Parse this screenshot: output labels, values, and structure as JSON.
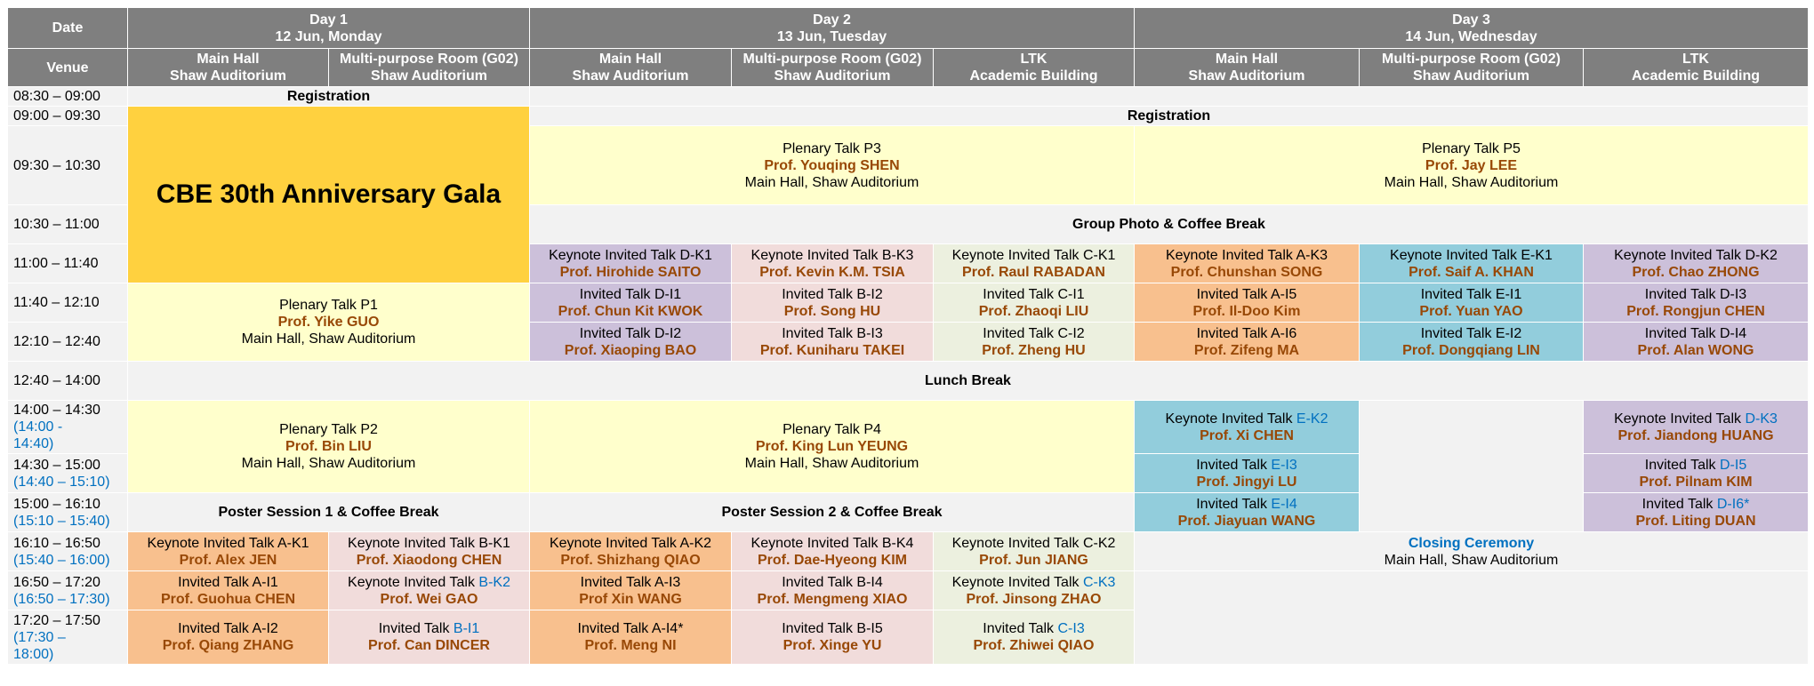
{
  "header": {
    "date_label": "Date",
    "venue_label": "Venue",
    "day1": {
      "title": "Day 1",
      "date": "12 Jun, Monday"
    },
    "day2": {
      "title": "Day 2",
      "date": "13 Jun, Tuesday"
    },
    "day3": {
      "title": "Day 3",
      "date": "14 Jun, Wednesday"
    },
    "venues": [
      {
        "line1": "Main Hall",
        "line2": "Shaw Auditorium"
      },
      {
        "line1": "Multi-purpose Room (G02)",
        "line2": "Shaw Auditorium"
      },
      {
        "line1": "Main Hall",
        "line2": "Shaw Auditorium"
      },
      {
        "line1": "Multi-purpose Room (G02)",
        "line2": "Shaw Auditorium"
      },
      {
        "line1": "LTK",
        "line2": "Academic Building"
      },
      {
        "line1": "Main Hall",
        "line2": "Shaw Auditorium"
      },
      {
        "line1": "Multi-purpose Room (G02)",
        "line2": "Shaw Auditorium"
      },
      {
        "line1": "LTK",
        "line2": "Academic Building"
      }
    ]
  },
  "times": [
    {
      "main": "08:30 – 09:00",
      "alt": ""
    },
    {
      "main": "09:00 – 09:30",
      "alt": ""
    },
    {
      "main": "09:30 – 10:30",
      "alt": ""
    },
    {
      "main": "10:30 – 11:00",
      "alt": ""
    },
    {
      "main": "11:00 – 11:40",
      "alt": ""
    },
    {
      "main": "11:40 – 12:10",
      "alt": ""
    },
    {
      "main": "12:10 – 12:40",
      "alt": ""
    },
    {
      "main": "12:40 – 14:00",
      "alt": ""
    },
    {
      "main": "14:00 – 14:30",
      "alt": "(14:00 -",
      "alt2": "14:40)"
    },
    {
      "main": "14:30 – 15:00",
      "alt": "(14:40 – 15:10)"
    },
    {
      "main": "15:00 – 16:10",
      "alt": "(15:10 – 15:40)"
    },
    {
      "main": "16:10 – 16:50",
      "alt": "(15:40 – 16:00)"
    },
    {
      "main": "16:50 – 17:20",
      "alt": "(16:50 – 17:30)"
    },
    {
      "main": "17:20 – 17:50",
      "alt": "(17:30 –",
      "alt2": "18:00)"
    }
  ],
  "breaks": {
    "registration": "Registration",
    "group_photo": "Group Photo & Coffee Break",
    "lunch": "Lunch Break",
    "poster1": "Poster Session 1 & Coffee Break",
    "poster2": "Poster Session 2 & Coffee Break",
    "gala": "CBE 30th Anniversary Gala"
  },
  "plenary": {
    "p1": {
      "title": "Plenary Talk P1",
      "speaker": "Prof. Yike GUO",
      "venue": "Main Hall, Shaw Auditorium"
    },
    "p2": {
      "title": "Plenary Talk P2",
      "speaker": "Prof. Bin LIU",
      "venue": "Main Hall, Shaw Auditorium"
    },
    "p3": {
      "title": "Plenary Talk P3",
      "speaker": "Prof. Youqing SHEN",
      "venue": "Main Hall, Shaw Auditorium"
    },
    "p4": {
      "title": "Plenary Talk P4",
      "speaker": "Prof. King Lun YEUNG",
      "venue": "Main Hall, Shaw Auditorium"
    },
    "p5": {
      "title": "Plenary Talk P5",
      "speaker": "Prof. Jay LEE",
      "venue": "Main Hall, Shaw Auditorium"
    }
  },
  "talks": {
    "d2_main_1": {
      "title": "Keynote Invited Talk D-K1",
      "speaker": "Prof. Hirohide SAITO"
    },
    "d2_main_2": {
      "title": "Invited Talk D-I1",
      "speaker": "Prof. Chun Kit KWOK"
    },
    "d2_main_3": {
      "title": "Invited Talk D-I2",
      "speaker": "Prof. Xiaoping BAO"
    },
    "d2_mp_1": {
      "title": "Keynote Invited Talk B-K3",
      "speaker": "Prof. Kevin K.M. TSIA"
    },
    "d2_mp_2": {
      "title": "Invited Talk B-I2",
      "speaker": "Prof. Song HU"
    },
    "d2_mp_3": {
      "title": "Invited Talk B-I3",
      "speaker": "Prof. Kuniharu TAKEI"
    },
    "d2_ltk_1": {
      "title": "Keynote Invited Talk C-K1",
      "speaker": "Prof. Raul RABADAN"
    },
    "d2_ltk_2": {
      "title": "Invited Talk C-I1",
      "speaker": "Prof. Zhaoqi LIU"
    },
    "d2_ltk_3": {
      "title": "Invited Talk C-I2",
      "speaker": "Prof. Zheng HU"
    },
    "d3_main_1": {
      "title": "Keynote Invited Talk A-K3",
      "speaker": "Prof. Chunshan SONG"
    },
    "d3_main_2": {
      "title": "Invited Talk A-I5",
      "speaker": "Prof. Il-Doo Kim"
    },
    "d3_main_3": {
      "title": "Invited Talk A-I6",
      "speaker": "Prof. Zifeng MA"
    },
    "d3_mp_1": {
      "title": "Keynote Invited Talk E-K1",
      "speaker": "Prof. Saif A. KHAN"
    },
    "d3_mp_2": {
      "title": "Invited Talk E-I1",
      "speaker": "Prof. Yuan YAO"
    },
    "d3_mp_3": {
      "title": "Invited Talk E-I2",
      "speaker": "Prof. Dongqiang LIN"
    },
    "d3_ltk_1": {
      "title": "Keynote Invited Talk D-K2",
      "speaker": "Prof. Chao ZHONG"
    },
    "d3_ltk_2": {
      "title": "Invited Talk D-I3",
      "speaker": "Prof. Rongjun CHEN"
    },
    "d3_ltk_3": {
      "title": "Invited Talk D-I4",
      "speaker": "Prof. Alan WONG"
    },
    "d3_main_4": {
      "prefix": "Keynote Invited Talk ",
      "code": "E-K2",
      "speaker": "Prof. Xi CHEN"
    },
    "d3_main_5": {
      "prefix": "Invited Talk ",
      "code": "E-I3",
      "speaker": "Prof. Jingyi LU"
    },
    "d3_main_6": {
      "prefix": "Invited Talk ",
      "code": "E-I4",
      "speaker": "Prof. Jiayuan WANG"
    },
    "d3_ltk_4": {
      "prefix": "Keynote Invited Talk ",
      "code": "D-K3",
      "speaker": "Prof. Jiandong HUANG"
    },
    "d3_ltk_5": {
      "prefix": "Invited Talk ",
      "code": "D-I5",
      "speaker": "Prof. Pilnam KIM"
    },
    "d3_ltk_6": {
      "prefix": "Invited Talk ",
      "code": "D-I6*",
      "speaker": "Prof. Liting DUAN"
    },
    "d1_main_1": {
      "title": "Keynote Invited Talk A-K1",
      "speaker": "Prof. Alex JEN"
    },
    "d1_main_2": {
      "title": "Invited Talk A-I1",
      "speaker": "Prof. Guohua CHEN"
    },
    "d1_main_3": {
      "title": "Invited Talk A-I2",
      "speaker": "Prof. Qiang ZHANG"
    },
    "d1_mp_1": {
      "title": "Keynote Invited Talk B-K1",
      "speaker": "Prof. Xiaodong CHEN"
    },
    "d1_mp_2": {
      "prefix": "Keynote Invited Talk ",
      "code": "B-K2",
      "speaker": "Prof. Wei GAO"
    },
    "d1_mp_3": {
      "prefix": "Invited Talk ",
      "code": "B-I1",
      "speaker": "Prof. Can DINCER"
    },
    "d2_main_4": {
      "title": "Keynote Invited Talk A-K2",
      "speaker": "Prof. Shizhang QIAO"
    },
    "d2_main_5": {
      "title": "Invited Talk A-I3",
      "speaker": "Prof Xin WANG"
    },
    "d2_main_6": {
      "title": "Invited Talk A-I4*",
      "speaker": "Prof. Meng NI"
    },
    "d2_mp_4": {
      "title": "Keynote Invited Talk B-K4",
      "speaker": "Prof. Dae-Hyeong KIM"
    },
    "d2_mp_5": {
      "title": "Invited Talk B-I4",
      "speaker": "Prof. Mengmeng XIAO"
    },
    "d2_mp_6": {
      "title": "Invited Talk B-I5",
      "speaker": "Prof. Xinge YU"
    },
    "d2_ltk_4": {
      "title": "Keynote Invited Talk C-K2",
      "speaker": "Prof. Jun JIANG"
    },
    "d2_ltk_5": {
      "prefix": "Keynote Invited Talk ",
      "code": "C-K3",
      "speaker": "Prof. Jinsong ZHAO"
    },
    "d2_ltk_6": {
      "prefix": "Invited Talk ",
      "code": "C-I3",
      "speaker": "Prof. Zhiwei QIAO"
    }
  },
  "closing": {
    "title": "Closing Ceremony",
    "venue": "Main Hall, Shaw Auditorium"
  }
}
